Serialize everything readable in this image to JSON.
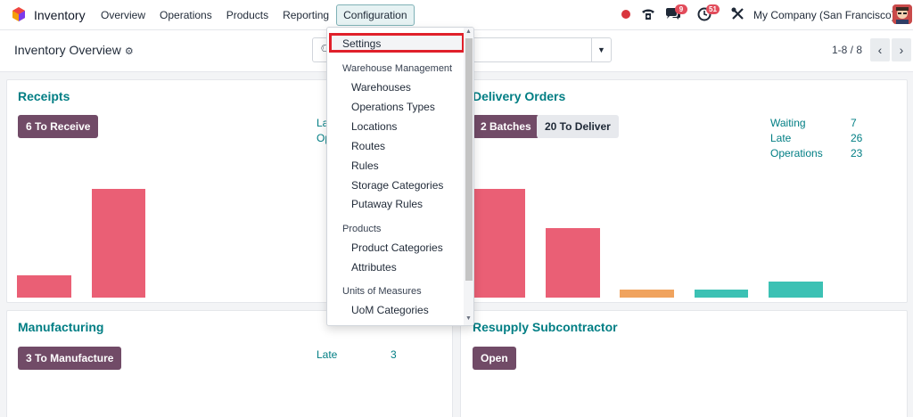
{
  "navbar": {
    "app_name": "Inventory",
    "menu": [
      {
        "label": "Overview"
      },
      {
        "label": "Operations"
      },
      {
        "label": "Products"
      },
      {
        "label": "Reporting"
      },
      {
        "label": "Configuration"
      }
    ],
    "messages_badge": "9",
    "activities_badge": "51",
    "company": "My Company (San Francisco)"
  },
  "control": {
    "title": "Inventory Overview",
    "pager": "1-8 / 8"
  },
  "dropdown": {
    "highlighted": "Settings",
    "group1": "Warehouse Management",
    "warehouse_items": [
      "Warehouses",
      "Operations Types",
      "Locations",
      "Routes",
      "Rules",
      "Storage Categories",
      "Putaway Rules"
    ],
    "group2": "Products",
    "product_items": [
      "Product Categories",
      "Attributes"
    ],
    "group3": "Units of Measures",
    "uom_items": [
      "UoM Categories"
    ]
  },
  "cards": {
    "receipts": {
      "title": "Receipts",
      "button": "6 To Receive",
      "stat1_partial": "La",
      "stat2_partial": "Op",
      "chart_colors": [
        "#ea5f75",
        "#ea5f75"
      ]
    },
    "delivery": {
      "title": "Delivery Orders",
      "button_batches": "2 Batches",
      "button_deliver": "20 To Deliver",
      "stats": [
        {
          "label": "Waiting",
          "value": "7"
        },
        {
          "label": "Late",
          "value": "26"
        },
        {
          "label": "Operations",
          "value": "23"
        }
      ],
      "chart_colors": [
        "#ea5f75",
        "#ea5f75",
        "#f0a35e",
        "#3cc1b4",
        "#3cc1b4"
      ]
    },
    "manufacturing": {
      "title": "Manufacturing",
      "button": "3 To Manufacture",
      "stat_label": "Late",
      "stat_value": "3"
    },
    "subcontractor": {
      "title": "Resupply Subcontractor",
      "button": "Open"
    }
  }
}
